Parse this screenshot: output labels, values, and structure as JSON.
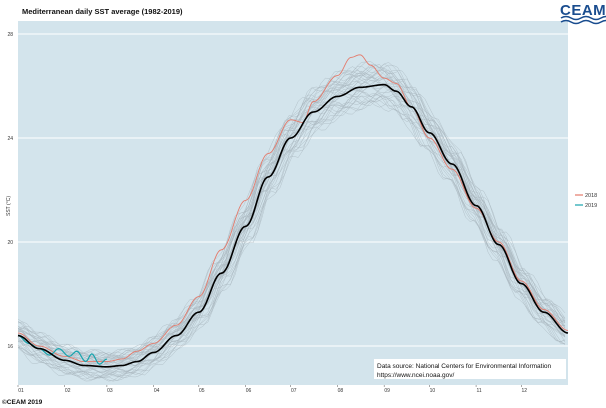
{
  "chart_data": {
    "type": "line",
    "title": "Mediterranean daily SST average (1982-2019)",
    "xlabel": "",
    "ylabel": "SST (°C)",
    "x_tick_labels": [
      "01",
      "02",
      "03",
      "04",
      "05",
      "06",
      "07",
      "08",
      "09",
      "10",
      "11",
      "12"
    ],
    "x_tick_days": [
      1,
      32,
      60,
      91,
      121,
      152,
      182,
      213,
      244,
      274,
      305,
      335
    ],
    "xlim": [
      1,
      366
    ],
    "y_ticks": [
      16,
      20,
      24,
      28
    ],
    "ylim": [
      14.5,
      28.5
    ],
    "grid": "horizontal",
    "legend_position": "right",
    "colors": {
      "background": "#d3e4ec",
      "grid": "#ffffff",
      "climatology": "#000000",
      "historical": "#a7b4bc",
      "y2018": "#e47a6b",
      "y2019": "#17a3ad",
      "logo": "#1a4d8f"
    },
    "climatology_name": "",
    "climatology": {
      "x": [
        1,
        15,
        32,
        45,
        60,
        70,
        80,
        91,
        106,
        121,
        136,
        152,
        167,
        182,
        197,
        213,
        228,
        244,
        252,
        262,
        274,
        289,
        305,
        320,
        335,
        350,
        366
      ],
      "y": [
        16.4,
        15.9,
        15.45,
        15.25,
        15.2,
        15.25,
        15.4,
        15.75,
        16.4,
        17.3,
        18.8,
        20.6,
        22.5,
        24.0,
        25.0,
        25.6,
        25.95,
        26.05,
        25.8,
        25.2,
        24.2,
        23.0,
        21.4,
        19.9,
        18.4,
        17.3,
        16.5
      ]
    },
    "series": [
      {
        "name": "2018",
        "x": [
          1,
          15,
          32,
          45,
          60,
          70,
          80,
          91,
          106,
          121,
          136,
          152,
          167,
          182,
          190,
          197,
          213,
          222,
          228,
          235,
          244,
          252,
          262,
          274,
          289,
          305,
          320,
          335,
          350,
          366
        ],
        "y": [
          16.5,
          16.0,
          15.6,
          15.4,
          15.4,
          15.5,
          15.8,
          16.1,
          16.8,
          17.9,
          19.7,
          21.6,
          23.4,
          24.7,
          24.6,
          25.4,
          26.4,
          27.1,
          27.2,
          26.8,
          26.3,
          26.1,
          25.2,
          24.0,
          22.8,
          21.3,
          20.0,
          18.5,
          17.4,
          16.6
        ]
      },
      {
        "name": "2019",
        "x": [
          1,
          8,
          15,
          22,
          28,
          35,
          40,
          46,
          50,
          55,
          60
        ],
        "y": [
          16.4,
          16.1,
          15.9,
          15.65,
          15.9,
          15.6,
          15.8,
          15.4,
          15.7,
          15.3,
          15.5
        ]
      }
    ]
  },
  "source_note": {
    "line1": "Data source: National Centers for Environmental Information",
    "line2": "https://www.ncei.noaa.gov/"
  },
  "logo_text": "CEAM",
  "credit": "©CEAM 2019"
}
